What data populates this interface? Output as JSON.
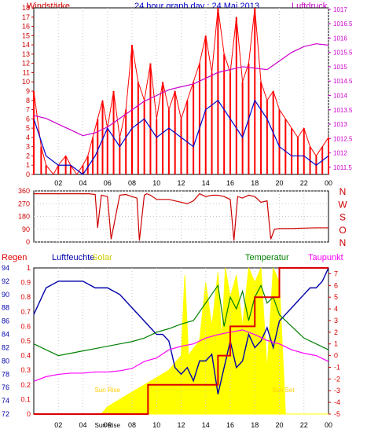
{
  "header": {
    "title": "24 hour graph day : 24 Mai 2013",
    "left_label": "Windstärke",
    "right_label": "Luftdruck"
  },
  "colors": {
    "frame": "#000000",
    "wind": "#ff0000",
    "wind_mean": "#0000cc",
    "pressure": "#cc00cc",
    "direction": "#cc0000",
    "humidity": "#0000aa",
    "temperature": "#008000",
    "dewpoint": "#ff00ff",
    "solar": "#ffff00",
    "rain": "#dd0000",
    "title_text": "#0000cc",
    "left_text": "#cc0000",
    "right_text": "#cc00cc",
    "grid": "#c8c8c8"
  },
  "chart_data": [
    {
      "name": "wind-pressure",
      "type": "line",
      "title": "24 hour graph day : 24 Mai 2013",
      "x_ticks": [
        "02",
        "04",
        "06",
        "08",
        "10",
        "12",
        "14",
        "16",
        "18",
        "20",
        "22",
        "00"
      ],
      "x_range_hours": [
        0,
        24
      ],
      "left_axis": {
        "label": "Windstärke",
        "ticks": [
          0,
          1,
          2,
          3,
          4,
          5,
          6,
          7,
          8,
          9,
          10,
          11,
          12,
          13,
          14,
          15,
          16,
          17,
          18
        ],
        "range": [
          0,
          18
        ]
      },
      "right_axis": {
        "label": "Luftdruck",
        "ticks": [
          "1011.5",
          "1012",
          "1012.5",
          "1013",
          "1013.5",
          "1014",
          "1014.5",
          "1015",
          "1015.5",
          "1016",
          "1016.5",
          "1017"
        ],
        "range": [
          1011.25,
          1017.05
        ]
      },
      "series": [
        {
          "name": "Windstärke",
          "x": [
            0,
            0.6,
            1,
            1.6,
            2,
            2.6,
            3,
            3.5,
            4,
            4.4,
            4.8,
            5.2,
            5.6,
            6,
            6.5,
            7,
            7.5,
            8,
            8.5,
            9,
            9.5,
            10,
            10.5,
            11,
            11.5,
            12,
            12.5,
            13,
            13.5,
            14,
            14.5,
            15,
            15.5,
            16,
            16.5,
            17,
            17.5,
            18,
            18.5,
            19,
            19.5,
            20,
            20.5,
            21,
            21.5,
            22,
            22.5,
            23,
            23.5,
            24
          ],
          "values": [
            9,
            3,
            1,
            0,
            1,
            2,
            1,
            0,
            1,
            2,
            4,
            6,
            8,
            5,
            9,
            4,
            7,
            14,
            10,
            8,
            12,
            6,
            10,
            7,
            9,
            6,
            8,
            10,
            12,
            15,
            11,
            18,
            13,
            11,
            17,
            10,
            12,
            18,
            10,
            8,
            9,
            7,
            6,
            5,
            4,
            5,
            3,
            2,
            3,
            4
          ]
        },
        {
          "name": "Wind mean",
          "x": [
            0,
            1,
            2,
            3,
            4,
            5,
            6,
            7,
            8,
            9,
            10,
            11,
            12,
            13,
            14,
            15,
            16,
            17,
            18,
            19,
            20,
            21,
            22,
            23,
            24
          ],
          "values": [
            6,
            2,
            1,
            1,
            0,
            2,
            5,
            3,
            5,
            6,
            4,
            5,
            4,
            3,
            7,
            8,
            6,
            4,
            8,
            6,
            3,
            2,
            2,
            1,
            2
          ]
        },
        {
          "name": "Luftdruck",
          "x": [
            0,
            1,
            2,
            3,
            4,
            5,
            6,
            7,
            8,
            9,
            10,
            11,
            12,
            13,
            14,
            15,
            16,
            17,
            18,
            19,
            20,
            21,
            22,
            23,
            24
          ],
          "values": [
            1013.3,
            1013.2,
            1013.0,
            1012.8,
            1012.6,
            1012.7,
            1012.9,
            1013.2,
            1013.5,
            1013.8,
            1014.0,
            1014.2,
            1014.3,
            1014.4,
            1014.6,
            1014.8,
            1014.9,
            1015.0,
            1014.95,
            1014.9,
            1015.2,
            1015.5,
            1015.7,
            1015.8,
            1015.75
          ]
        }
      ]
    },
    {
      "name": "wind-direction",
      "type": "line",
      "left_ticks": [
        0,
        90,
        180,
        270,
        360
      ],
      "right_letters": [
        "N",
        "W",
        "S",
        "O",
        "N"
      ],
      "range": [
        0,
        360
      ],
      "series": [
        {
          "name": "Windrichtung",
          "x": [
            0,
            4.5,
            5.0,
            5.2,
            5.5,
            6.0,
            6.3,
            7.0,
            7.5,
            8.0,
            8.4,
            8.6,
            9.0,
            9.2,
            9.5,
            10.0,
            11.0,
            12.0,
            12.5,
            13.0,
            13.5,
            14.0,
            14.5,
            15.0,
            15.5,
            16.0,
            16.3,
            16.6,
            17.0,
            17.5,
            18.0,
            18.5,
            19.0,
            19.3,
            19.6,
            20.0,
            21.0,
            22.0,
            23.0,
            24.0
          ],
          "values": [
            340,
            340,
            335,
            100,
            330,
            320,
            20,
            330,
            335,
            320,
            310,
            10,
            330,
            340,
            330,
            300,
            300,
            280,
            270,
            290,
            340,
            320,
            330,
            330,
            320,
            300,
            10,
            320,
            310,
            330,
            320,
            280,
            290,
            20,
            90,
            95,
            95,
            98,
            100,
            100
          ]
        }
      ]
    },
    {
      "name": "humidity-temperature",
      "type": "line",
      "x_ticks": [
        "02",
        "04",
        "06",
        "08",
        "10",
        "12",
        "14",
        "16",
        "18",
        "20",
        "22",
        "00"
      ],
      "legend": [
        "Regen",
        "Luftfeuchte",
        "Solar",
        "Temperatur",
        "Taupunkt"
      ],
      "left_axis_rain": {
        "label": "Regen",
        "ticks": [
          "0",
          "0.1",
          "0.2",
          "0.3",
          "0.4",
          "0.5",
          "0.6",
          "0.7",
          "0.8",
          "0.9",
          "1"
        ],
        "range": [
          0,
          1
        ]
      },
      "left_axis_humidity": {
        "label": "Luftfeuchte",
        "ticks": [
          72,
          74,
          76,
          78,
          80,
          82,
          84,
          86,
          88,
          90,
          92,
          94
        ],
        "range": [
          72,
          94
        ]
      },
      "right_axis_temp": {
        "label": "Temperatur",
        "ticks": [
          -5,
          -4,
          -3,
          -2,
          -1,
          0,
          1,
          2,
          3,
          4,
          5,
          6,
          7
        ],
        "range": [
          -5,
          7.5
        ]
      },
      "annotations": [
        {
          "text": "Sun Rise",
          "x_hours": 6.0
        },
        {
          "text": "Sun Set",
          "x_hours": 20.3
        },
        {
          "text": "Sun Rise",
          "x_hours": 6.0
        }
      ],
      "series": [
        {
          "name": "Luftfeuchte",
          "x": [
            0,
            1,
            2,
            3,
            4,
            5,
            6,
            7,
            8,
            9,
            9.5,
            10,
            10.5,
            11,
            11.5,
            12,
            12.5,
            13,
            13.5,
            14,
            14.5,
            15,
            15.5,
            16,
            16.5,
            17,
            17.5,
            18,
            18.5,
            19,
            19.5,
            20,
            20.5,
            21,
            21.5,
            22,
            22.5,
            23,
            23.5,
            24
          ],
          "values": [
            87,
            91,
            92,
            92,
            92,
            91,
            91,
            90,
            88,
            86,
            85,
            84,
            84,
            83,
            79,
            78,
            79,
            77,
            80,
            80,
            81,
            75,
            79,
            83,
            79,
            80,
            84,
            82,
            83,
            85,
            82,
            86,
            87,
            88,
            89,
            90,
            91,
            91,
            92,
            94
          ]
        },
        {
          "name": "Temperatur",
          "x": [
            0,
            1,
            2,
            3,
            4,
            5,
            6,
            7,
            8,
            9,
            10,
            11,
            12,
            13,
            14,
            15,
            15.5,
            16,
            16.5,
            17,
            17.5,
            18,
            18.5,
            19,
            19.5,
            20,
            21,
            22,
            23,
            24
          ],
          "values": [
            1.0,
            0.5,
            0,
            0.2,
            0.4,
            0.6,
            0.8,
            1.0,
            1.2,
            1.5,
            2.0,
            2.3,
            2.7,
            3.0,
            4.5,
            6.0,
            2.5,
            5.0,
            4.0,
            5.5,
            3.0,
            5.0,
            6.0,
            4.5,
            5.0,
            3.5,
            2.5,
            1.5,
            1.0,
            0.5
          ]
        },
        {
          "name": "Taupunkt",
          "x": [
            0,
            1,
            2,
            3,
            4,
            5,
            6,
            7,
            8,
            9,
            10,
            11,
            12,
            13,
            14,
            15,
            16,
            17,
            18,
            19,
            20,
            21,
            22,
            23,
            24
          ],
          "values": [
            -2.2,
            -1.8,
            -1.6,
            -1.5,
            -1.5,
            -1.4,
            -1.4,
            -1.3,
            -1.1,
            -0.5,
            -0.2,
            0.5,
            0.8,
            1.0,
            1.5,
            1.8,
            2.0,
            2.2,
            1.8,
            1.3,
            1.0,
            0.5,
            0.2,
            0,
            -0.5
          ]
        },
        {
          "name": "Solar",
          "x": [
            0,
            5.5,
            6,
            7,
            8,
            9,
            10,
            11,
            12,
            12.3,
            12.6,
            13,
            13.5,
            14,
            14.5,
            15,
            15.3,
            15.6,
            16,
            16.5,
            17,
            17.5,
            18,
            18.5,
            19,
            19.5,
            20,
            20.5,
            24
          ],
          "values": [
            0,
            0,
            0.05,
            0.1,
            0.15,
            0.2,
            0.25,
            0.3,
            0.4,
            0.95,
            0.4,
            0.45,
            0.5,
            0.9,
            0.6,
            0.97,
            0.5,
            1.0,
            0.8,
            0.95,
            0.6,
            1.0,
            0.9,
            1.0,
            0.3,
            1.0,
            0.9,
            0,
            0
          ]
        },
        {
          "name": "Regen",
          "x": [
            0,
            9.3,
            9.3,
            15,
            15,
            16,
            16,
            18,
            18,
            20,
            20,
            24
          ],
          "values": [
            0,
            0,
            0.2,
            0.2,
            0.4,
            0.4,
            0.6,
            0.6,
            0.8,
            0.8,
            1.0,
            1.0
          ]
        }
      ]
    }
  ]
}
